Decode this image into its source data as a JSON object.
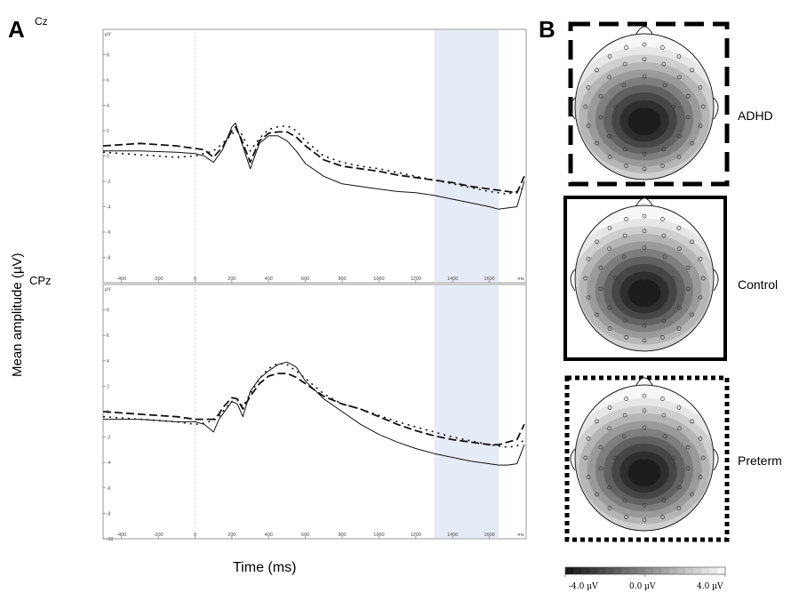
{
  "figure": {
    "panel_a": "A",
    "panel_b": "B",
    "ylabel": "Mean amplitude (µV)",
    "xlabel": "Time (ms)"
  },
  "chart_data": [
    {
      "type": "line",
      "title": "Cz",
      "unit_label": "µV",
      "xunit": "ms",
      "xlim": [
        -500,
        1800
      ],
      "ylim": [
        -10,
        10
      ],
      "xticks": [
        -400,
        -200,
        0,
        200,
        400,
        600,
        800,
        1000,
        1200,
        1400,
        1600
      ],
      "yticks": [
        8,
        6,
        4,
        2,
        0,
        -2,
        -4,
        -6,
        -8
      ],
      "highlight_x": [
        1300,
        1650
      ],
      "series": [
        {
          "style": "solid",
          "x": [
            -500,
            -300,
            -100,
            0,
            50,
            100,
            150,
            200,
            220,
            250,
            300,
            350,
            400,
            450,
            500,
            550,
            600,
            700,
            800,
            900,
            1000,
            1100,
            1200,
            1300,
            1400,
            1500,
            1600,
            1650,
            1700,
            1750,
            1790
          ],
          "values": [
            0.4,
            0.4,
            0.3,
            0.2,
            0.0,
            -0.5,
            0.5,
            2.3,
            2.6,
            1.2,
            -1.0,
            1.0,
            1.6,
            1.6,
            1.2,
            0.4,
            -0.6,
            -1.6,
            -2.2,
            -2.4,
            -2.6,
            -2.8,
            -2.9,
            -3.1,
            -3.4,
            -3.7,
            -4.0,
            -4.2,
            -4.1,
            -4.0,
            -2.0
          ]
        },
        {
          "style": "long-dash",
          "x": [
            -500,
            -300,
            -100,
            0,
            50,
            100,
            150,
            200,
            220,
            250,
            300,
            350,
            400,
            450,
            500,
            550,
            600,
            700,
            800,
            900,
            1000,
            1100,
            1200,
            1300,
            1400,
            1500,
            1600,
            1650,
            1700,
            1750,
            1790
          ],
          "values": [
            0.8,
            1.0,
            0.8,
            0.6,
            0.5,
            -0.1,
            0.7,
            2.0,
            2.3,
            1.4,
            -0.5,
            1.2,
            1.8,
            1.9,
            1.9,
            1.5,
            0.8,
            -0.3,
            -0.8,
            -1.0,
            -1.2,
            -1.5,
            -1.7,
            -1.9,
            -2.1,
            -2.4,
            -2.6,
            -2.7,
            -2.8,
            -2.9,
            -1.6
          ]
        },
        {
          "style": "dot-dash",
          "x": [
            -500,
            -300,
            -100,
            0,
            50,
            100,
            150,
            200,
            220,
            250,
            300,
            350,
            400,
            450,
            500,
            550,
            600,
            700,
            800,
            900,
            1000,
            1100,
            1200,
            1300,
            1400,
            1500,
            1600,
            1650,
            1700,
            1750,
            1790
          ],
          "values": [
            0.3,
            0.1,
            -0.1,
            0.0,
            0.2,
            0.4,
            1.0,
            1.7,
            2.1,
            1.8,
            0.4,
            1.4,
            2.1,
            2.3,
            2.4,
            2.0,
            1.2,
            0.0,
            -0.5,
            -0.8,
            -1.0,
            -1.3,
            -1.6,
            -1.9,
            -2.2,
            -2.5,
            -2.8,
            -2.9,
            -3.0,
            -2.8,
            -2.5
          ]
        }
      ]
    },
    {
      "type": "line",
      "title": "CPz",
      "unit_label": "µV",
      "xunit": "ms",
      "xlim": [
        -500,
        1800
      ],
      "ylim": [
        -10,
        10
      ],
      "xticks": [
        -400,
        -200,
        0,
        200,
        400,
        600,
        800,
        1000,
        1200,
        1400,
        1600
      ],
      "yticks": [
        8,
        6,
        4,
        2,
        0,
        -2,
        -4,
        -6,
        -8,
        -10
      ],
      "highlight_x": [
        1300,
        1650
      ],
      "series": [
        {
          "style": "solid",
          "x": [
            -500,
            -300,
            -100,
            0,
            50,
            100,
            130,
            150,
            200,
            230,
            260,
            300,
            350,
            400,
            450,
            500,
            550,
            600,
            700,
            800,
            900,
            1000,
            1100,
            1200,
            1300,
            1400,
            1500,
            1600,
            1650,
            1700,
            1750,
            1790
          ],
          "values": [
            -0.6,
            -0.6,
            -0.8,
            -0.8,
            -1.0,
            -1.6,
            -0.6,
            -0.2,
            0.8,
            0.6,
            -0.4,
            1.6,
            2.6,
            3.2,
            3.7,
            3.9,
            3.5,
            2.4,
            1.0,
            0.0,
            -1.0,
            -1.8,
            -2.4,
            -2.9,
            -3.3,
            -3.6,
            -3.9,
            -4.1,
            -4.2,
            -4.2,
            -4.1,
            -2.6
          ]
        },
        {
          "style": "long-dash",
          "x": [
            -500,
            -300,
            -100,
            0,
            50,
            100,
            130,
            150,
            200,
            230,
            260,
            300,
            350,
            400,
            450,
            500,
            550,
            600,
            700,
            800,
            900,
            1000,
            1100,
            1200,
            1300,
            1400,
            1500,
            1600,
            1650,
            1700,
            1750,
            1790
          ],
          "values": [
            0.0,
            -0.2,
            -0.4,
            -0.6,
            -0.6,
            -0.6,
            -0.2,
            0.3,
            1.1,
            1.0,
            0.2,
            1.2,
            2.2,
            2.8,
            3.0,
            3.0,
            2.7,
            2.2,
            1.2,
            0.6,
            0.2,
            -0.4,
            -1.0,
            -1.5,
            -1.9,
            -2.2,
            -2.4,
            -2.6,
            -2.6,
            -2.4,
            -2.2,
            -1.0
          ]
        },
        {
          "style": "dot-dash",
          "x": [
            -500,
            -300,
            -100,
            0,
            50,
            100,
            130,
            150,
            200,
            230,
            260,
            300,
            350,
            400,
            450,
            500,
            550,
            600,
            700,
            800,
            900,
            1000,
            1100,
            1200,
            1300,
            1400,
            1500,
            1600,
            1650,
            1700,
            1750,
            1790
          ],
          "values": [
            -0.4,
            -0.6,
            -0.8,
            -1.0,
            -0.9,
            -0.7,
            -0.4,
            0.0,
            0.8,
            0.9,
            0.4,
            1.4,
            2.6,
            3.4,
            3.8,
            3.7,
            3.2,
            2.6,
            1.4,
            0.6,
            0.2,
            -0.3,
            -0.8,
            -1.2,
            -1.6,
            -2.0,
            -2.3,
            -2.6,
            -2.7,
            -2.8,
            -2.7,
            -2.2
          ]
        }
      ]
    },
    {
      "type": "heatmap",
      "description_free": true,
      "maps": [
        "ADHD",
        "Control",
        "Preterm"
      ],
      "colorbar": {
        "min_label": "-4.0 µV",
        "mid_label": "0.0 µV",
        "max_label": "4.0 µV",
        "min": -4.0,
        "max": 4.0
      },
      "border_styles": [
        "dashed",
        "solid",
        "dotted"
      ]
    }
  ]
}
